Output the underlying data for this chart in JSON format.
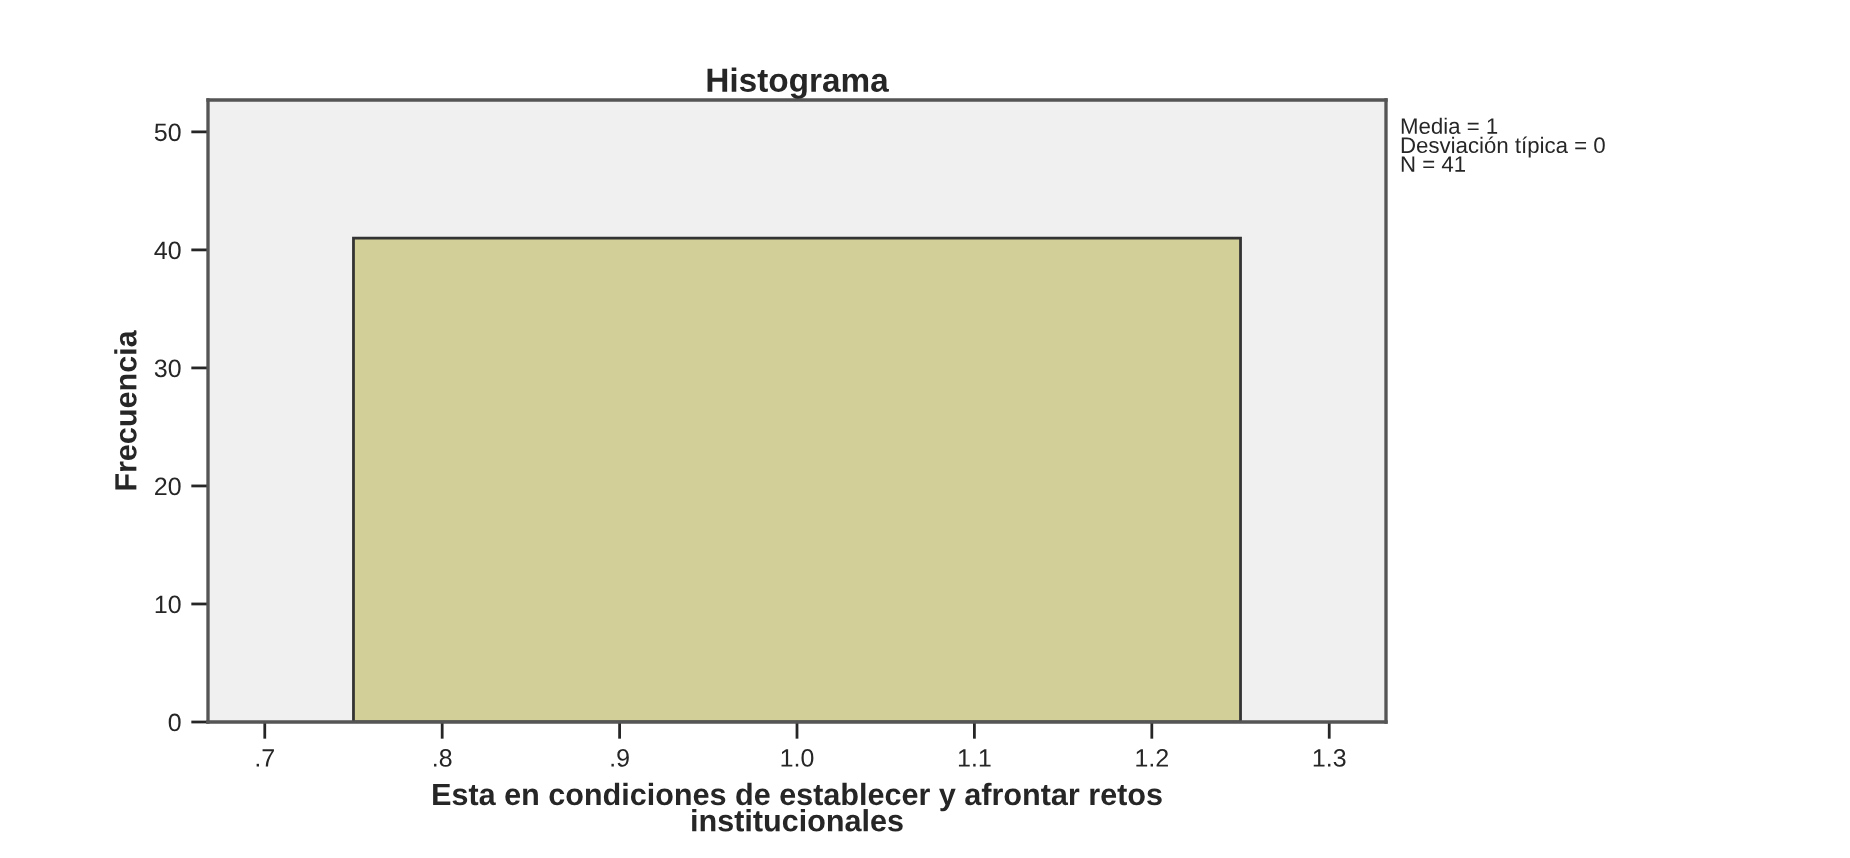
{
  "chart_data": {
    "type": "histogram",
    "title": "Histograma",
    "xlabel": "Esta en condiciones de establecer y afrontar retos\ninstitucionales",
    "ylabel": "Frecuencia",
    "bins": [
      0.75,
      1.25
    ],
    "values": [
      41
    ],
    "color": "#d3cf99",
    "xlim": [
      0.668,
      1.332
    ],
    "ylim": [
      0,
      52.7
    ],
    "xticks": [
      {
        "value": 0.7,
        "label": ".7"
      },
      {
        "value": 0.8,
        "label": ".8"
      },
      {
        "value": 0.9,
        "label": ".9"
      },
      {
        "value": 1.0,
        "label": "1.0"
      },
      {
        "value": 1.1,
        "label": "1.1"
      },
      {
        "value": 1.2,
        "label": "1.2"
      },
      {
        "value": 1.3,
        "label": "1.3"
      }
    ],
    "yticks": [
      0,
      10,
      20,
      30,
      40,
      50
    ],
    "annotations": [
      "Media = 1",
      "Desviación típica = 0",
      "N = 41"
    ]
  }
}
